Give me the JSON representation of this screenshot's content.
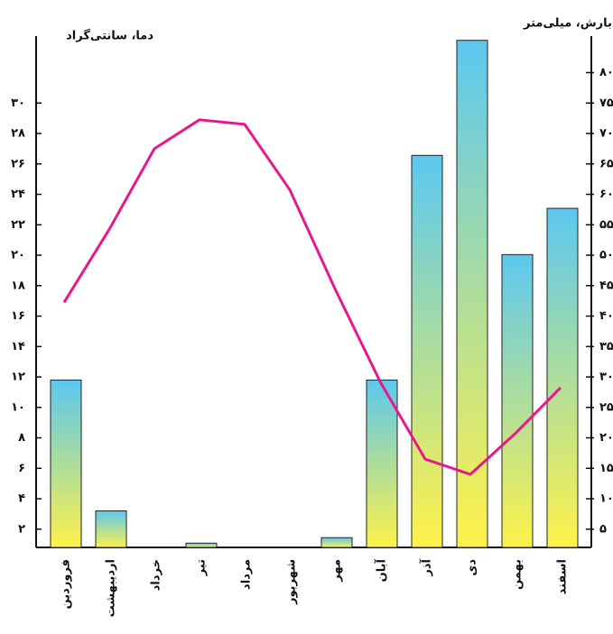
{
  "chart_data": {
    "type": "climograph",
    "y_label": "دما، سانتی‌گراد",
    "y2_label": "بارش، میلی‌متر",
    "categories": [
      "فروردین",
      "اردیبهشت",
      "خرداد",
      "تیر",
      "مرداد",
      "شهریور",
      "مهر",
      "آبان",
      "آذر",
      "دی",
      "بهمن",
      "اسفند"
    ],
    "series": [
      {
        "name": "بارش",
        "type": "bar",
        "axis": "y2",
        "color": "#5bc8f0",
        "values": [
          29.5,
          8,
          0,
          2.7,
          0,
          0,
          3.6,
          29.5,
          66.4,
          85.3,
          50.1,
          57.7
        ]
      },
      {
        "name": "دما",
        "type": "line",
        "color": "#e6198c",
        "values": [
          16.9,
          21.7,
          27,
          28.9,
          28.6,
          24.3,
          17.8,
          11.7,
          6.6,
          5.6,
          8.3,
          11.3
        ]
      }
    ],
    "ylim": [
      0.8,
      34.4
    ],
    "yticks": [
      {
        "value": 2,
        "label": "۲"
      },
      {
        "value": 4,
        "label": "۴"
      },
      {
        "value": 6,
        "label": "۶"
      },
      {
        "value": 8,
        "label": "۸"
      },
      {
        "value": 10,
        "label": "۱۰"
      },
      {
        "value": 12,
        "label": "۱۲"
      },
      {
        "value": 14,
        "label": "۱۴"
      },
      {
        "value": 16,
        "label": "۱۶"
      },
      {
        "value": 18,
        "label": "۱۸"
      },
      {
        "value": 20,
        "label": "۲۰"
      },
      {
        "value": 22,
        "label": "۲۲"
      },
      {
        "value": 24,
        "label": "۲۴"
      },
      {
        "value": 26,
        "label": "۲۶"
      },
      {
        "value": 28,
        "label": "۲۸"
      },
      {
        "value": 30,
        "label": "۳۰"
      }
    ],
    "y2lim": [
      2,
      86
    ],
    "y2ticks": [
      {
        "value": 5,
        "label": "۵"
      },
      {
        "value": 10,
        "label": "۱۰"
      },
      {
        "value": 15,
        "label": "۱۵"
      },
      {
        "value": 20,
        "label": "۲۰"
      },
      {
        "value": 25,
        "label": "۲۵"
      },
      {
        "value": 30,
        "label": "۳۰"
      },
      {
        "value": 35,
        "label": "۳۵"
      },
      {
        "value": 40,
        "label": "۴۰"
      },
      {
        "value": 45,
        "label": "۴۵"
      },
      {
        "value": 50,
        "label": "۵۰"
      },
      {
        "value": 55,
        "label": "۵۵"
      },
      {
        "value": 60,
        "label": "۶۰"
      },
      {
        "value": 65,
        "label": "۶۵"
      },
      {
        "value": 70,
        "label": "۷۰"
      },
      {
        "value": 75,
        "label": "۷۵"
      },
      {
        "value": 80,
        "label": "۸۰"
      }
    ]
  }
}
